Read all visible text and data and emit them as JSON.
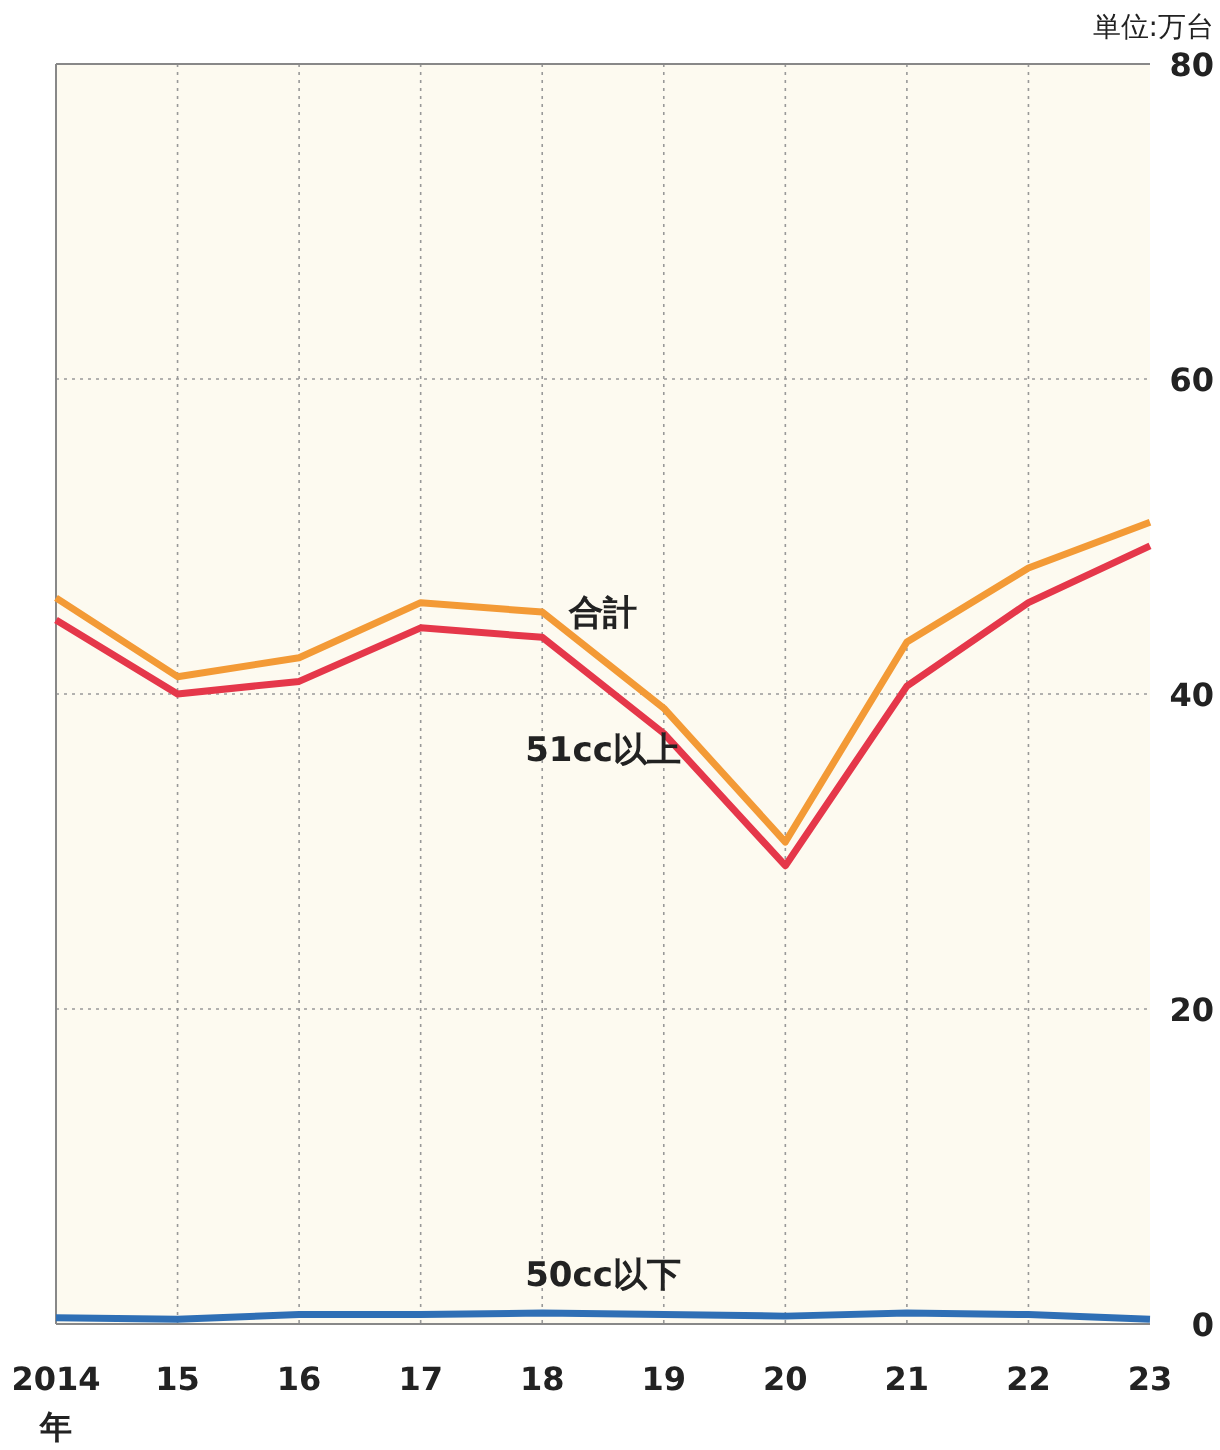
{
  "chart_data": {
    "type": "line",
    "categories": [
      "2014",
      "15",
      "16",
      "17",
      "18",
      "19",
      "20",
      "21",
      "22",
      "23"
    ],
    "xlabel": "年",
    "annotations": [
      "単位:万台"
    ],
    "series": [
      {
        "name": "合計",
        "color": "#f39a36",
        "values": [
          46.1,
          41.1,
          42.3,
          45.8,
          45.2,
          39.1,
          30.6,
          43.3,
          48.0,
          50.9
        ]
      },
      {
        "name": "51cc以上",
        "color": "#e5374a",
        "values": [
          44.7,
          40.0,
          40.8,
          44.2,
          43.6,
          37.5,
          29.1,
          40.5,
          45.8,
          49.4
        ]
      },
      {
        "name": "50cc以下",
        "color": "#2f6fb5",
        "values": [
          0.4,
          0.3,
          0.6,
          0.6,
          0.7,
          0.6,
          0.5,
          0.7,
          0.6,
          0.3
        ]
      }
    ],
    "ylim": [
      0,
      80
    ],
    "yticks": [
      0,
      20,
      40,
      60,
      80
    ],
    "grid": true,
    "legend": false,
    "marker": "none",
    "line_style": "solid"
  }
}
